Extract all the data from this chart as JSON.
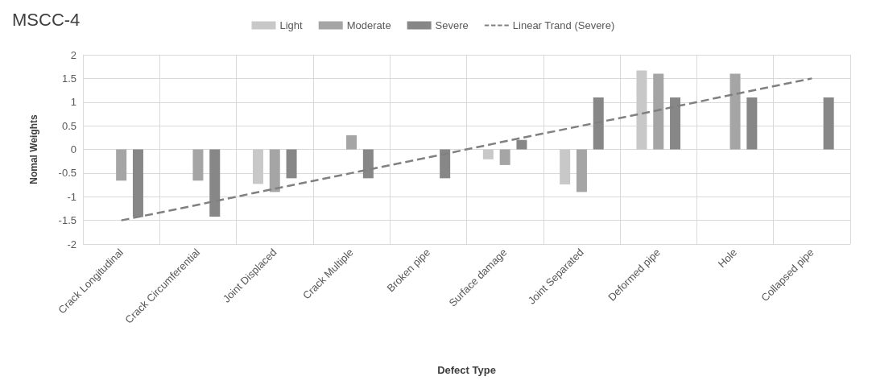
{
  "chart_data": {
    "type": "bar",
    "title": "MSCC-4",
    "xlabel": "Defect Type",
    "ylabel": "Nomal Weights",
    "categories": [
      "Crack Longitudinal",
      "Crack Circumferential",
      "Joint Displaced",
      "Crack Multiple",
      "Broken pipe",
      "Surface damage",
      "Joint Separated",
      "Deformed pipe",
      "Hole",
      "Collapsed pipe"
    ],
    "series": [
      {
        "name": "Light",
        "color": "#c8c8c8",
        "values": [
          null,
          null,
          -0.73,
          null,
          null,
          -0.21,
          -0.74,
          1.67,
          null,
          null
        ]
      },
      {
        "name": "Moderate",
        "color": "#a5a5a5",
        "values": [
          -0.66,
          -0.66,
          -0.9,
          0.3,
          null,
          -0.33,
          -0.9,
          1.6,
          1.6,
          null
        ]
      },
      {
        "name": "Severe",
        "color": "#878787",
        "values": [
          -1.43,
          -1.42,
          -0.61,
          -0.61,
          -0.61,
          0.2,
          1.1,
          1.1,
          1.1,
          1.1
        ]
      },
      {
        "name": "Linear Trand (Severe)",
        "type": "line",
        "color": "#808080",
        "line_style": "dashed",
        "marker": "none",
        "values": [
          -1.5,
          -1.17,
          -0.83,
          -0.5,
          -0.17,
          0.17,
          0.5,
          0.83,
          1.17,
          1.5
        ]
      }
    ],
    "ylim": [
      -2,
      2
    ],
    "yticks": [
      -2,
      -1.5,
      -1,
      -0.5,
      0,
      0.5,
      1,
      1.5,
      2
    ],
    "grid": true,
    "legend": "top"
  }
}
